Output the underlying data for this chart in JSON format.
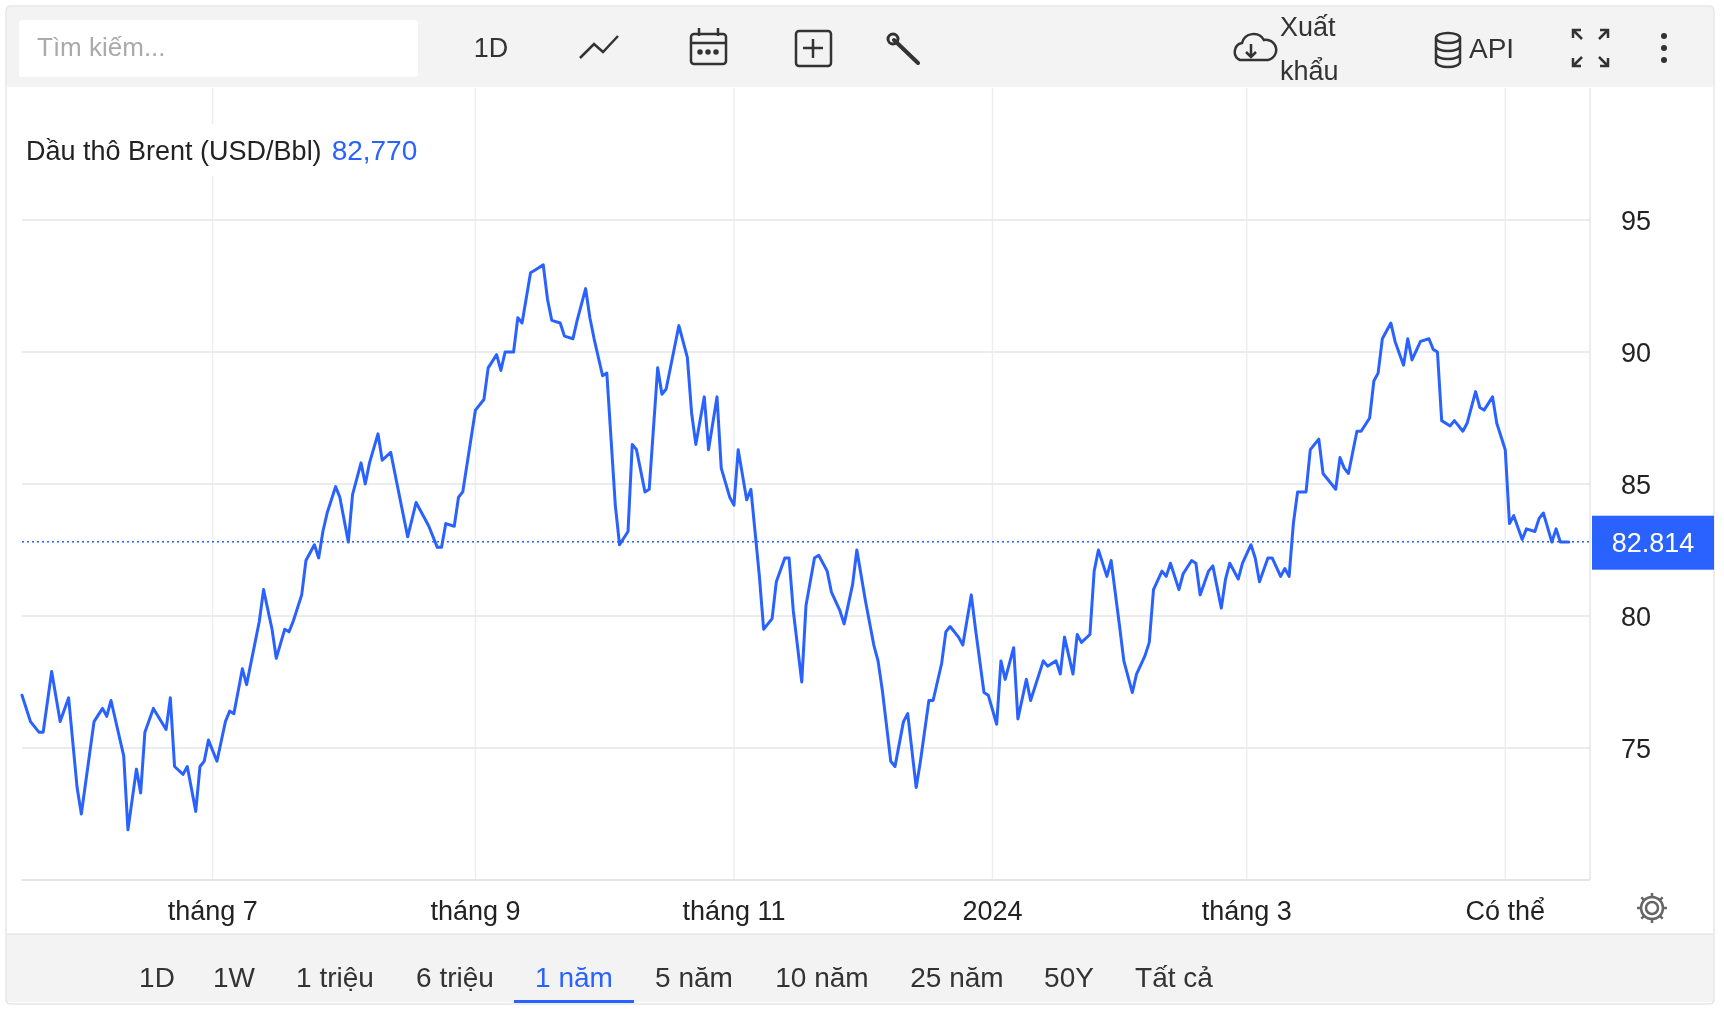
{
  "chart_data": {
    "type": "line",
    "title": "Dầu thô Brent (USD/Bbl)",
    "subtitle": "82,770",
    "x": [
      "2023-05-17",
      "2023-05-19",
      "2023-05-21",
      "2023-05-22",
      "2023-05-24",
      "2023-05-26",
      "2023-05-28",
      "2023-05-30",
      "2023-05-31",
      "2023-06-03",
      "2023-06-05",
      "2023-06-06",
      "2023-06-07",
      "2023-06-10",
      "2023-06-11",
      "2023-06-13",
      "2023-06-14",
      "2023-06-15",
      "2023-06-17",
      "2023-06-20",
      "2023-06-21",
      "2023-06-22",
      "2023-06-24",
      "2023-06-25",
      "2023-06-27",
      "2023-06-28",
      "2023-06-29",
      "2023-06-30",
      "2023-07-02",
      "2023-07-04",
      "2023-07-05",
      "2023-07-06",
      "2023-07-08",
      "2023-07-09",
      "2023-07-11",
      "2023-07-12",
      "2023-07-13",
      "2023-07-15",
      "2023-07-16",
      "2023-07-18",
      "2023-07-19",
      "2023-07-20",
      "2023-07-22",
      "2023-07-23",
      "2023-07-25",
      "2023-07-26",
      "2023-07-27",
      "2023-07-28",
      "2023-07-30",
      "2023-07-31",
      "2023-08-02",
      "2023-08-03",
      "2023-08-05",
      "2023-08-06",
      "2023-08-07",
      "2023-08-09",
      "2023-08-10",
      "2023-08-12",
      "2023-08-13",
      "2023-08-16",
      "2023-08-18",
      "2023-08-20",
      "2023-08-21",
      "2023-08-23",
      "2023-08-24",
      "2023-08-25",
      "2023-08-27",
      "2023-08-28",
      "2023-08-29",
      "2023-09-01",
      "2023-09-03",
      "2023-09-04",
      "2023-09-06",
      "2023-09-07",
      "2023-09-08",
      "2023-09-10",
      "2023-09-11",
      "2023-09-12",
      "2023-09-14",
      "2023-09-15",
      "2023-09-17",
      "2023-09-18",
      "2023-09-19",
      "2023-09-21",
      "2023-09-22",
      "2023-09-24",
      "2023-09-25",
      "2023-09-27",
      "2023-09-28",
      "2023-09-29",
      "2023-10-01",
      "2023-10-02",
      "2023-10-04",
      "2023-10-05",
      "2023-10-07",
      "2023-10-08",
      "2023-10-09",
      "2023-10-11",
      "2023-10-12",
      "2023-10-14",
      "2023-10-15",
      "2023-10-16",
      "2023-10-18",
      "2023-10-19",
      "2023-10-21",
      "2023-10-22",
      "2023-10-23",
      "2023-10-25",
      "2023-10-26",
      "2023-10-28",
      "2023-10-29",
      "2023-10-31",
      "2023-11-01",
      "2023-11-02",
      "2023-11-04",
      "2023-11-05",
      "2023-11-07",
      "2023-11-08",
      "2023-11-10",
      "2023-11-11",
      "2023-11-13",
      "2023-11-14",
      "2023-11-15",
      "2023-11-17",
      "2023-11-18",
      "2023-11-20",
      "2023-11-21",
      "2023-11-23",
      "2023-11-24",
      "2023-11-26",
      "2023-11-27",
      "2023-11-29",
      "2023-11-30",
      "2023-12-02",
      "2023-12-04",
      "2023-12-05",
      "2023-12-06",
      "2023-12-08",
      "2023-12-09",
      "2023-12-11",
      "2023-12-12",
      "2023-12-14",
      "2023-12-15",
      "2023-12-17",
      "2023-12-18",
      "2023-12-20",
      "2023-12-21",
      "2023-12-22",
      "2023-12-24",
      "2023-12-25",
      "2023-12-27",
      "2023-12-28",
      "2023-12-30",
      "2023-12-31",
      "2024-01-02",
      "2024-01-03",
      "2024-01-04",
      "2024-01-06",
      "2024-01-07",
      "2024-01-09",
      "2024-01-10",
      "2024-01-11",
      "2024-01-13",
      "2024-01-14",
      "2024-01-16",
      "2024-01-17",
      "2024-01-18",
      "2024-01-20",
      "2024-01-21",
      "2024-01-22",
      "2024-01-24",
      "2024-01-25",
      "2024-01-26",
      "2024-01-28",
      "2024-01-29",
      "2024-01-31",
      "2024-02-01",
      "2024-02-03",
      "2024-02-04",
      "2024-02-06",
      "2024-02-07",
      "2024-02-08",
      "2024-02-10",
      "2024-02-11",
      "2024-02-12",
      "2024-02-14",
      "2024-02-15",
      "2024-02-17",
      "2024-02-18",
      "2024-02-19",
      "2024-02-21",
      "2024-02-22",
      "2024-02-24",
      "2024-02-25",
      "2024-02-26",
      "2024-02-28",
      "2024-02-29",
      "2024-03-02",
      "2024-03-03",
      "2024-03-04",
      "2024-03-06",
      "2024-03-07",
      "2024-03-09",
      "2024-03-10",
      "2024-03-11",
      "2024-03-12",
      "2024-03-13",
      "2024-03-15",
      "2024-03-16",
      "2024-03-18",
      "2024-03-19",
      "2024-03-20",
      "2024-03-22",
      "2024-03-23",
      "2024-03-24",
      "2024-03-25",
      "2024-03-27",
      "2024-03-28",
      "2024-03-30",
      "2024-03-31",
      "2024-04-01",
      "2024-04-02",
      "2024-04-04",
      "2024-04-05",
      "2024-04-07",
      "2024-04-08",
      "2024-04-09",
      "2024-04-11",
      "2024-04-13",
      "2024-04-14",
      "2024-04-15",
      "2024-04-16",
      "2024-04-18",
      "2024-04-19",
      "2024-04-21",
      "2024-04-22",
      "2024-04-24",
      "2024-04-25",
      "2024-04-26",
      "2024-04-28",
      "2024-04-29",
      "2024-05-01",
      "2024-05-02",
      "2024-05-03",
      "2024-05-05",
      "2024-05-06",
      "2024-05-08",
      "2024-05-09",
      "2024-05-10",
      "2024-05-12",
      "2024-05-13",
      "2024-05-14",
      "2024-05-16"
    ],
    "series": [
      {
        "color": "#2962ff",
        "values": [
          77.0,
          76.0,
          75.6,
          75.6,
          77.9,
          76.0,
          76.9,
          73.5,
          72.5,
          76.0,
          76.5,
          76.2,
          76.8,
          74.7,
          71.9,
          74.2,
          73.3,
          75.6,
          76.5,
          75.7,
          76.9,
          74.3,
          74.0,
          74.3,
          72.6,
          74.3,
          74.5,
          75.3,
          74.5,
          76.0,
          76.4,
          76.3,
          78.0,
          77.4,
          79.0,
          79.8,
          81.0,
          79.5,
          78.4,
          79.5,
          79.4,
          79.8,
          80.8,
          82.1,
          82.7,
          82.2,
          83.2,
          83.9,
          84.9,
          84.5,
          82.8,
          84.6,
          85.8,
          85.0,
          85.8,
          86.9,
          85.9,
          86.2,
          85.4,
          83.0,
          84.3,
          83.7,
          83.4,
          82.6,
          82.6,
          83.5,
          83.4,
          84.5,
          84.7,
          87.8,
          88.2,
          89.4,
          89.9,
          89.3,
          90.0,
          90.0,
          91.3,
          91.1,
          93.0,
          93.1,
          93.3,
          92.0,
          91.2,
          91.1,
          90.6,
          90.5,
          91.2,
          92.4,
          91.3,
          90.5,
          89.1,
          89.2,
          84.2,
          82.7,
          83.2,
          86.5,
          86.3,
          84.7,
          84.8,
          89.4,
          88.4,
          88.6,
          90.2,
          91.0,
          89.8,
          87.7,
          86.5,
          88.3,
          86.3,
          88.3,
          85.6,
          84.5,
          84.2,
          86.3,
          84.4,
          84.8,
          81.5,
          79.5,
          79.9,
          81.3,
          82.2,
          82.2,
          80.2,
          77.5,
          80.4,
          82.2,
          82.3,
          81.7,
          80.9,
          80.2,
          79.7,
          81.2,
          82.5,
          80.6,
          78.9,
          78.3,
          77.2,
          74.5,
          74.3,
          76.0,
          76.3,
          73.5,
          74.5,
          76.8,
          76.8,
          78.2,
          79.4,
          79.6,
          79.2,
          78.9,
          80.8,
          79.5,
          77.1,
          77.0,
          75.9,
          78.3,
          77.6,
          78.8,
          76.1,
          77.6,
          76.8,
          77.3,
          78.3,
          78.1,
          78.3,
          77.8,
          79.2,
          77.8,
          79.3,
          79.0,
          79.3,
          81.7,
          82.5,
          81.5,
          82.1,
          79.6,
          78.3,
          77.1,
          77.8,
          78.5,
          79.0,
          81.0,
          81.7,
          81.5,
          82.0,
          81.0,
          81.6,
          82.1,
          82.0,
          80.8,
          81.7,
          81.9,
          80.3,
          81.4,
          82.0,
          81.4,
          82.0,
          82.7,
          82.2,
          81.3,
          82.2,
          82.2,
          81.5,
          81.8,
          81.5,
          83.5,
          84.7,
          84.7,
          86.3,
          86.7,
          85.4,
          85.2,
          84.8,
          86.0,
          85.6,
          85.4,
          87.0,
          87.0,
          87.5,
          88.9,
          89.2,
          90.5,
          91.1,
          90.4,
          89.5,
          90.5,
          89.7,
          90.4,
          90.5,
          90.1,
          90.0,
          87.4,
          87.2,
          87.4,
          87.0,
          87.3,
          88.5,
          87.9,
          87.8,
          88.3,
          87.3,
          86.3,
          83.5,
          83.8,
          82.9,
          83.3,
          83.2,
          83.7,
          83.9,
          82.8,
          83.3,
          82.8,
          82.8
        ]
      }
    ],
    "xlim": [
      "2023-05-17",
      "2024-05-21"
    ],
    "xticks": [
      {
        "value": "2023-07-01",
        "label": "tháng 7"
      },
      {
        "value": "2023-09-01",
        "label": "tháng 9"
      },
      {
        "value": "2023-11-01",
        "label": "tháng 11"
      },
      {
        "value": "2024-01-01",
        "label": "2024"
      },
      {
        "value": "2024-03-01",
        "label": "tháng 3"
      },
      {
        "value": "2024-05-01",
        "label": "Có thể"
      }
    ],
    "ylim": [
      70,
      100
    ],
    "yticks": [
      75,
      80,
      85,
      90,
      95
    ],
    "grid": true,
    "marker": "none",
    "line_style": "solid",
    "ref_lines": [
      {
        "axis": "y",
        "value": 82.814,
        "label": "82.814",
        "color": "#2962ff",
        "line_style": "dotted"
      }
    ],
    "annotations": [
      "Tìm kiếm...",
      "1D",
      "Xuất khẩu",
      "API",
      "1D",
      "1W",
      "1 triệu",
      "6 triệu",
      "1 năm",
      "5 năm",
      "10 năm",
      "25 năm",
      "50Y",
      "Tất cả"
    ]
  }
}
